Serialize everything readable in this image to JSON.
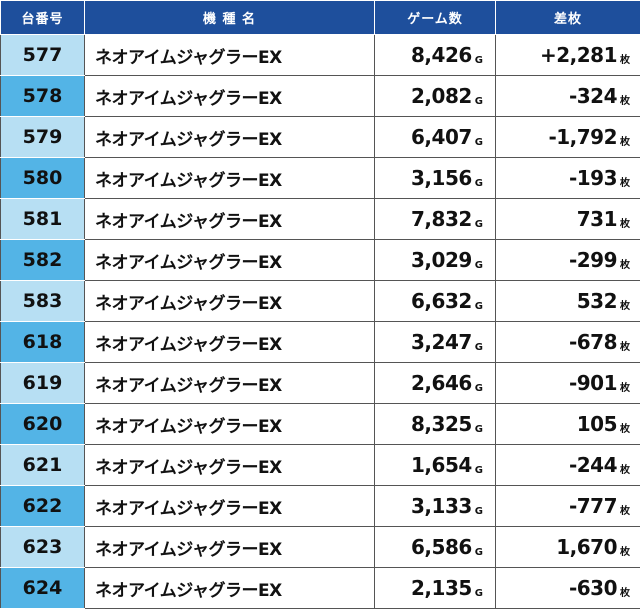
{
  "headers": {
    "num": "台番号",
    "name": "機 種 名",
    "games": "ゲーム数",
    "diff": "差枚"
  },
  "units": {
    "games": "G",
    "diff": "枚"
  },
  "rows": [
    {
      "num": "577",
      "name": "ネオアイムジャグラーEX",
      "games": "8,426",
      "diff": "+2,281"
    },
    {
      "num": "578",
      "name": "ネオアイムジャグラーEX",
      "games": "2,082",
      "diff": "-324"
    },
    {
      "num": "579",
      "name": "ネオアイムジャグラーEX",
      "games": "6,407",
      "diff": "-1,792"
    },
    {
      "num": "580",
      "name": "ネオアイムジャグラーEX",
      "games": "3,156",
      "diff": "-193"
    },
    {
      "num": "581",
      "name": "ネオアイムジャグラーEX",
      "games": "7,832",
      "diff": "731"
    },
    {
      "num": "582",
      "name": "ネオアイムジャグラーEX",
      "games": "3,029",
      "diff": "-299"
    },
    {
      "num": "583",
      "name": "ネオアイムジャグラーEX",
      "games": "6,632",
      "diff": "532"
    },
    {
      "num": "618",
      "name": "ネオアイムジャグラーEX",
      "games": "3,247",
      "diff": "-678"
    },
    {
      "num": "619",
      "name": "ネオアイムジャグラーEX",
      "games": "2,646",
      "diff": "-901"
    },
    {
      "num": "620",
      "name": "ネオアイムジャグラーEX",
      "games": "8,325",
      "diff": "105"
    },
    {
      "num": "621",
      "name": "ネオアイムジャグラーEX",
      "games": "1,654",
      "diff": "-244"
    },
    {
      "num": "622",
      "name": "ネオアイムジャグラーEX",
      "games": "3,133",
      "diff": "-777"
    },
    {
      "num": "623",
      "name": "ネオアイムジャグラーEX",
      "games": "6,586",
      "diff": "1,670"
    },
    {
      "num": "624",
      "name": "ネオアイムジャグラーEX",
      "games": "2,135",
      "diff": "-630"
    }
  ],
  "colors": {
    "header_bg": "#1e4f9c",
    "num_light": "#b7dff3",
    "num_dark": "#53b4e6"
  }
}
